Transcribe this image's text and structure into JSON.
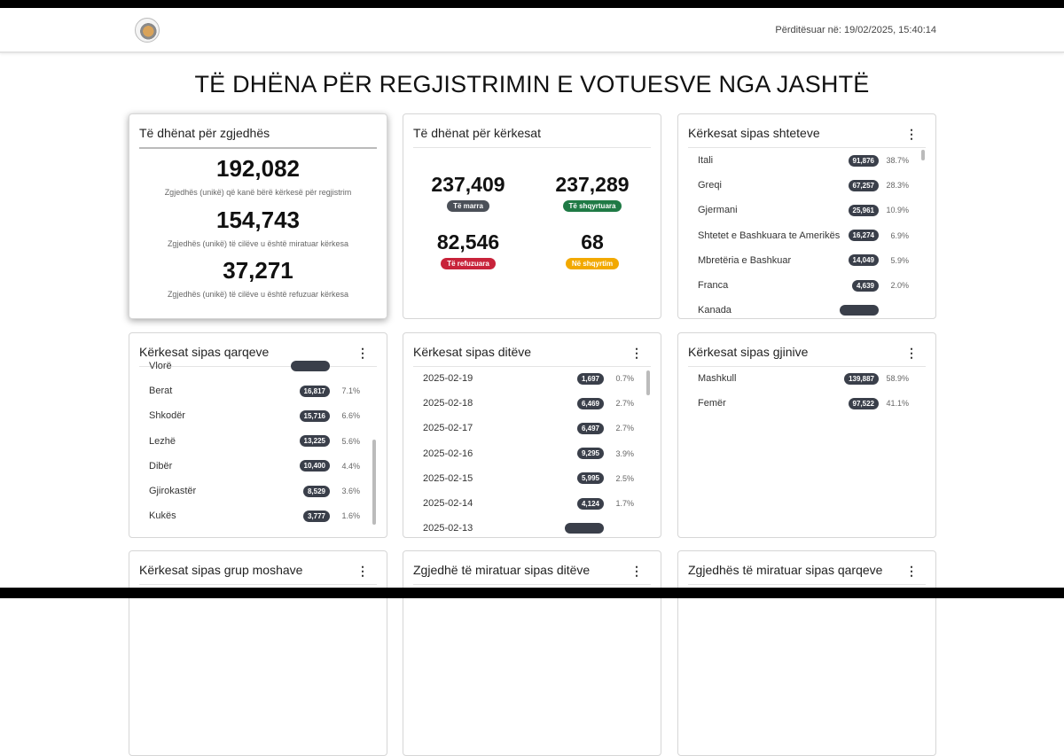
{
  "header": {
    "updated": "Përditësuar në: 19/02/2025, 15:40:14"
  },
  "title": "TË DHËNA PËR REGJISTRIMIN E VOTUESVE NGA JASHTË",
  "voters": {
    "title": "Të dhënat për zgjedhës",
    "stats": [
      {
        "value": "192,082",
        "caption": "Zgjedhës (unikë) që kanë bërë kërkesë për regjistrim"
      },
      {
        "value": "154,743",
        "caption": "Zgjedhës (unikë) të cilëve u është miratuar kërkesa"
      },
      {
        "value": "37,271",
        "caption": "Zgjedhës (unikë) të cilëve u është refuzuar kërkesa"
      }
    ]
  },
  "requests": {
    "title": "Të dhënat për kërkesat",
    "stats": [
      {
        "value": "237,409",
        "label": "Të marra",
        "color": "#4b5058"
      },
      {
        "value": "237,289",
        "label": "Të shqyrtuara",
        "color": "#1f7a45"
      },
      {
        "value": "82,546",
        "label": "Të refuzuara",
        "color": "#c8233a"
      },
      {
        "value": "68",
        "label": "Në shqyrtim",
        "color": "#f2a900"
      }
    ]
  },
  "countries": {
    "title": "Kërkesat sipas shteteve",
    "items": [
      {
        "label": "Itali",
        "count": "91,876",
        "pct": "38.7%"
      },
      {
        "label": "Greqi",
        "count": "67,257",
        "pct": "28.3%"
      },
      {
        "label": "Gjermani",
        "count": "25,961",
        "pct": "10.9%"
      },
      {
        "label": "Shtetet e Bashkuara te Amerikës",
        "count": "16,274",
        "pct": "6.9%"
      },
      {
        "label": "Mbretëria e Bashkuar",
        "count": "14,049",
        "pct": "5.9%"
      },
      {
        "label": "Franca",
        "count": "4,639",
        "pct": "2.0%"
      },
      {
        "label": "Kanada",
        "count": "",
        "pct": ""
      }
    ]
  },
  "counties": {
    "title": "Kërkesat sipas qarqeve",
    "items": [
      {
        "label": "Vlorë",
        "count": "",
        "pct": ""
      },
      {
        "label": "Berat",
        "count": "16,817",
        "pct": "7.1%"
      },
      {
        "label": "Shkodër",
        "count": "15,716",
        "pct": "6.6%"
      },
      {
        "label": "Lezhë",
        "count": "13,225",
        "pct": "5.6%"
      },
      {
        "label": "Dibër",
        "count": "10,400",
        "pct": "4.4%"
      },
      {
        "label": "Gjirokastër",
        "count": "8,529",
        "pct": "3.6%"
      },
      {
        "label": "Kukës",
        "count": "3,777",
        "pct": "1.6%"
      }
    ]
  },
  "days": {
    "title": "Kërkesat sipas ditëve",
    "items": [
      {
        "label": "2025-02-19",
        "count": "1,697",
        "pct": "0.7%"
      },
      {
        "label": "2025-02-18",
        "count": "6,469",
        "pct": "2.7%"
      },
      {
        "label": "2025-02-17",
        "count": "6,497",
        "pct": "2.7%"
      },
      {
        "label": "2025-02-16",
        "count": "9,295",
        "pct": "3.9%"
      },
      {
        "label": "2025-02-15",
        "count": "5,995",
        "pct": "2.5%"
      },
      {
        "label": "2025-02-14",
        "count": "4,124",
        "pct": "1.7%"
      },
      {
        "label": "2025-02-13",
        "count": "",
        "pct": ""
      }
    ]
  },
  "genders": {
    "title": "Kërkesat sipas gjinive",
    "items": [
      {
        "label": "Mashkull",
        "count": "139,887",
        "pct": "58.9%"
      },
      {
        "label": "Femër",
        "count": "97,522",
        "pct": "41.1%"
      }
    ]
  },
  "row3": {
    "age": "Kërkesat sipas grup moshave",
    "approved_days": "Zgjedhë të miratuar sipas ditëve",
    "approved_counties": "Zgjedhës të miratuar sipas qarqeve"
  },
  "menu_icon": "⋮"
}
